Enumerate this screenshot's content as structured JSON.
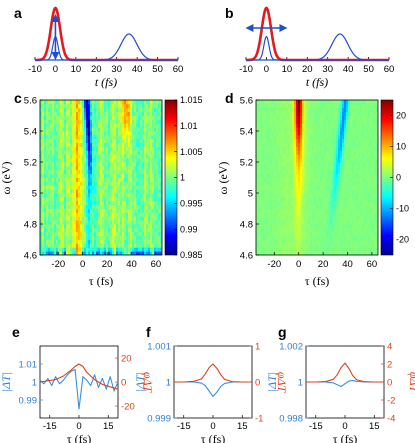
{
  "panel_labels": [
    "a",
    "b",
    "c",
    "d",
    "e",
    "f",
    "g"
  ],
  "chart_data": [
    {
      "panel": "a",
      "type": "line",
      "xlabel": "t (fs)",
      "xlim": [
        -10,
        60
      ],
      "xticks": [
        "-10",
        "0",
        "10",
        "20",
        "30",
        "40",
        "50",
        "60"
      ],
      "arrow": "vertical",
      "series": [
        {
          "color": "#e41a1c",
          "center": 0,
          "width": 3.2,
          "amplitude": 1.0
        },
        {
          "color": "#1f4fcf",
          "center": 0,
          "width": 1.8,
          "amplitude": 0.45
        },
        {
          "color": "#1f4fcf",
          "center": 36,
          "width": 5.5,
          "amplitude": 0.5
        }
      ]
    },
    {
      "panel": "b",
      "type": "line",
      "xlabel": "t (fs)",
      "xlim": [
        -10,
        60
      ],
      "xticks": [
        "-10",
        "0",
        "10",
        "20",
        "30",
        "40",
        "50",
        "60"
      ],
      "arrow": "horizontal",
      "series": [
        {
          "color": "#e41a1c",
          "center": 0,
          "width": 3.2,
          "amplitude": 1.0
        },
        {
          "color": "#1f4fcf",
          "center": 0,
          "width": 1.8,
          "amplitude": 0.45
        },
        {
          "color": "#1f4fcf",
          "center": 36,
          "width": 5.5,
          "amplitude": 0.5
        }
      ]
    },
    {
      "panel": "c",
      "type": "heatmap",
      "xlabel": "τ (fs)",
      "ylabel": "ω (eV)",
      "xlim": [
        -35,
        65
      ],
      "ylim": [
        4.6,
        5.6
      ],
      "xticks": [
        "-20",
        "0",
        "20",
        "40",
        "60"
      ],
      "yticks": [
        "4.6",
        "4.8",
        "5",
        "5.2",
        "5.4",
        "5.6"
      ],
      "colorbar": {
        "min": 0.985,
        "max": 1.015,
        "ticks": [
          "0.985",
          "0.99",
          "0.995",
          "1",
          "1.005",
          "1.01",
          "1.015"
        ]
      },
      "features": [
        {
          "tau": 0,
          "omega": 5.55,
          "value": 0.986
        },
        {
          "tau": -5,
          "omega": 5.0,
          "value": 1.006
        },
        {
          "tau": 35,
          "omega": 5.45,
          "value": 1.011
        }
      ]
    },
    {
      "panel": "d",
      "type": "heatmap",
      "xlabel": "τ (fs)",
      "ylabel": "ω (eV)",
      "xlim": [
        -35,
        65
      ],
      "ylim": [
        4.6,
        5.6
      ],
      "xticks": [
        "-20",
        "0",
        "20",
        "40",
        "60"
      ],
      "yticks": [
        "4.6",
        "4.8",
        "5",
        "5.2",
        "5.4",
        "5.6"
      ],
      "colorbar": {
        "min": -25,
        "max": 25,
        "ticks": [
          "-20",
          "-10",
          "0",
          "10",
          "20"
        ]
      },
      "features": [
        {
          "tau": 0,
          "omega": 5.5,
          "value": 23
        },
        {
          "tau": 37,
          "omega": 5.4,
          "value": -12
        }
      ]
    },
    {
      "panel": "e",
      "type": "line",
      "xlabel": "τ (fs)",
      "ylabel_left": "|ΔT|",
      "ylabel_right": "φΔT",
      "xlim": [
        -20,
        20
      ],
      "ylim_left": [
        0.98,
        1.02
      ],
      "ylim_right": [
        -30,
        30
      ],
      "xticks": [
        "-15",
        "0",
        "15"
      ],
      "yticks_left": [
        "0.99",
        "1",
        "1.01"
      ],
      "yticks_right": [
        "-20",
        "0",
        "20"
      ],
      "series": [
        {
          "axis": "left",
          "color": "#3b8fe0",
          "x": [
            -20,
            -18,
            -16,
            -14,
            -12,
            -10,
            -8,
            -6,
            -4,
            -2,
            0,
            2,
            4,
            6,
            8,
            10,
            12,
            14,
            16,
            18,
            20
          ],
          "y": [
            1.001,
            0.999,
            1.002,
            0.998,
            1.003,
            0.999,
            1.001,
            1.004,
            1.006,
            1.007,
            0.985,
            1.003,
            1.001,
            0.998,
            1.004,
            0.997,
            1.002,
            0.996,
            1.003,
            0.995,
            1.0
          ]
        },
        {
          "axis": "right",
          "color": "#d9431e",
          "x": [
            -20,
            -16,
            -12,
            -8,
            -4,
            -2,
            0,
            2,
            4,
            8,
            12,
            16,
            20
          ],
          "y": [
            0,
            1,
            2,
            5,
            10,
            13,
            15,
            13,
            8,
            2,
            -2,
            -4,
            -6
          ]
        }
      ]
    },
    {
      "panel": "f",
      "type": "line",
      "xlabel": "τ (fs)",
      "ylabel_left": "|ΔT|",
      "ylabel_right": "φΔT",
      "xlim": [
        -20,
        20
      ],
      "ylim_left": [
        0.999,
        1.001
      ],
      "ylim_right": [
        -1,
        1
      ],
      "xticks": [
        "-15",
        "0",
        "15"
      ],
      "yticks_left": [
        "0.999",
        "1",
        "1.001"
      ],
      "yticks_right": [
        "-1",
        "0",
        "1"
      ],
      "series": [
        {
          "axis": "left",
          "color": "#3b8fe0",
          "x": [
            -20,
            -15,
            -10,
            -6,
            -4,
            -2,
            0,
            2,
            4,
            6,
            10,
            15,
            20
          ],
          "y": [
            1.0,
            1.0,
            1.0,
            0.99997,
            0.9999,
            0.99975,
            0.9996,
            0.99972,
            0.99988,
            0.99996,
            1.0,
            1.0,
            1.0
          ]
        },
        {
          "axis": "right",
          "color": "#d9431e",
          "x": [
            -20,
            -15,
            -10,
            -6,
            -4,
            -2,
            0,
            2,
            4,
            6,
            10,
            15,
            20
          ],
          "y": [
            0,
            0,
            0.02,
            0.08,
            0.22,
            0.4,
            0.5,
            0.38,
            0.2,
            0.07,
            0.01,
            0,
            0
          ]
        }
      ]
    },
    {
      "panel": "g",
      "type": "line",
      "xlabel": "τ (fs)",
      "ylabel_left": "|ΔT|",
      "ylabel_right": "φΔT",
      "xlim": [
        -20,
        20
      ],
      "ylim_left": [
        0.998,
        1.002
      ],
      "ylim_right": [
        -4,
        4
      ],
      "xticks": [
        "-15",
        "0",
        "15"
      ],
      "yticks_left": [
        "0.998",
        "1",
        "1.002"
      ],
      "yticks_right": [
        "-4",
        "-2",
        "0",
        "2",
        "4"
      ],
      "series": [
        {
          "axis": "left",
          "color": "#3b8fe0",
          "x": [
            -20,
            -15,
            -10,
            -6,
            -4,
            -2,
            0,
            2,
            4,
            6,
            10,
            15,
            20
          ],
          "y": [
            1.0,
            1.0,
            1.0,
            0.99995,
            0.99985,
            0.99975,
            0.9999,
            1.00005,
            1.00008,
            1.00004,
            1.0,
            1.0,
            1.0
          ]
        },
        {
          "axis": "right",
          "color": "#d9431e",
          "x": [
            -20,
            -15,
            -10,
            -6,
            -4,
            -2,
            0,
            2,
            4,
            6,
            10,
            15,
            20
          ],
          "y": [
            0,
            0,
            0.05,
            0.3,
            0.8,
            1.6,
            2.1,
            1.5,
            0.7,
            0.25,
            0.03,
            0,
            0
          ]
        }
      ]
    }
  ]
}
